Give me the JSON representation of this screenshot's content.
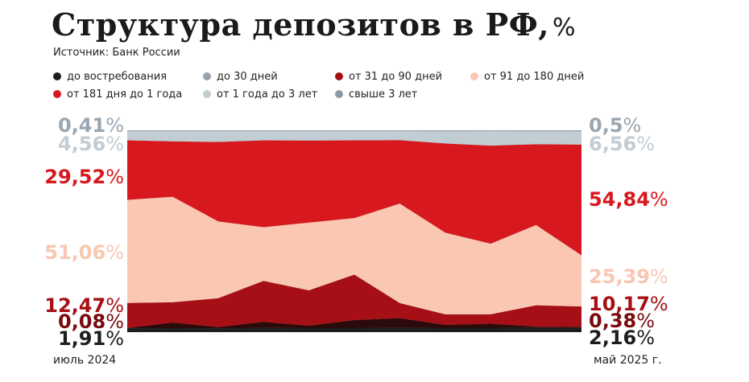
{
  "title": "Структура депозитов в РФ,",
  "title_unit": "%",
  "source": "Источник: Банк России",
  "legend": [
    {
      "label": "до востребования",
      "color": "#1d1d1b"
    },
    {
      "label": "до 30 дней",
      "color": "#9aa3ab"
    },
    {
      "label": "от 31 до 90 дней",
      "color": "#a50f15"
    },
    {
      "label": "от 91 до 180 дней",
      "color": "#f9c7b2"
    },
    {
      "label": "от 181 дня до 1 года",
      "color": "#d7191f"
    },
    {
      "label": "от 1 года до 3 лет",
      "color": "#c2ccd3"
    },
    {
      "label": "свыше 3 лет",
      "color": "#8c9aa6"
    }
  ],
  "x_start_label": "июль 2024",
  "x_end_label": "май 2025 г.",
  "left_labels": [
    {
      "value": "0,41",
      "unit": "%",
      "color": "#9aa6b0"
    },
    {
      "value": "4,56",
      "unit": "%",
      "color": "#c2ccd3"
    },
    {
      "value": "29,52",
      "unit": "%",
      "color": "#d7191f"
    },
    {
      "value": "51,06",
      "unit": "%",
      "color": "#f9c7b2"
    },
    {
      "value": "12,47",
      "unit": "%",
      "color": "#a50f15"
    },
    {
      "value": "0,08",
      "unit": "%",
      "color": "#7a0a0e"
    },
    {
      "value": "1,91",
      "unit": "%",
      "color": "#1d1d1b"
    }
  ],
  "right_labels": [
    {
      "value": "0,5",
      "unit": "%",
      "color": "#9aa6b0"
    },
    {
      "value": "6,56",
      "unit": "%",
      "color": "#c2ccd3"
    },
    {
      "value": "54,84",
      "unit": "%",
      "color": "#d7191f"
    },
    {
      "value": "25,39",
      "unit": "%",
      "color": "#f9c7b2"
    },
    {
      "value": "10,17",
      "unit": "%",
      "color": "#a50f15"
    },
    {
      "value": "0,38",
      "unit": "%",
      "color": "#7a0a0e"
    },
    {
      "value": "2,16",
      "unit": "%",
      "color": "#1d1d1b"
    }
  ],
  "chart_data": {
    "type": "area",
    "stacked": true,
    "normalized_to_100": true,
    "x": [
      "июль 2024",
      "",
      "",
      "",
      "",
      "",
      "",
      "",
      "",
      "",
      "май 2025 г."
    ],
    "series": [
      {
        "name": "до востребования",
        "color": "#1d1d1b",
        "values": [
          1.91,
          2.0,
          1.9,
          2.1,
          2.0,
          2.0,
          2.1,
          2.0,
          2.0,
          2.1,
          2.16
        ]
      },
      {
        "name": "до 30 дней",
        "color": "#2a0a0a",
        "values": [
          0.08,
          2.8,
          0.6,
          3.0,
          1.2,
          4.0,
          4.8,
          1.6,
          2.2,
          0.6,
          0.38
        ]
      },
      {
        "name": "от 31 до 90 дней",
        "color": "#a50f15",
        "values": [
          12.47,
          10.0,
          14.3,
          20.3,
          17.5,
          22.5,
          7.5,
          5.2,
          4.6,
          10.6,
          10.17
        ]
      },
      {
        "name": "от 91 до 180 дней",
        "color": "#f9c7b2",
        "values": [
          51.06,
          52.3,
          38.1,
          26.6,
          33.6,
          28.0,
          49.3,
          40.5,
          35.0,
          39.8,
          25.39
        ]
      },
      {
        "name": "от 181 дня до 1 года",
        "color": "#d7191f",
        "values": [
          29.52,
          27.4,
          39.3,
          43.0,
          40.6,
          38.5,
          31.4,
          44.2,
          48.6,
          40.0,
          54.84
        ]
      },
      {
        "name": "от 1 года до 3 лет",
        "color": "#c2ccd3",
        "values": [
          4.56,
          5.1,
          5.4,
          4.6,
          4.7,
          4.6,
          4.5,
          6.0,
          7.2,
          6.4,
          6.56
        ]
      },
      {
        "name": "свыше 3 лет",
        "color": "#9aa3ab",
        "values": [
          0.41,
          0.4,
          0.4,
          0.4,
          0.4,
          0.4,
          0.4,
          0.5,
          0.4,
          0.5,
          0.5
        ]
      }
    ],
    "ylim": [
      0,
      100
    ],
    "grid": false
  }
}
